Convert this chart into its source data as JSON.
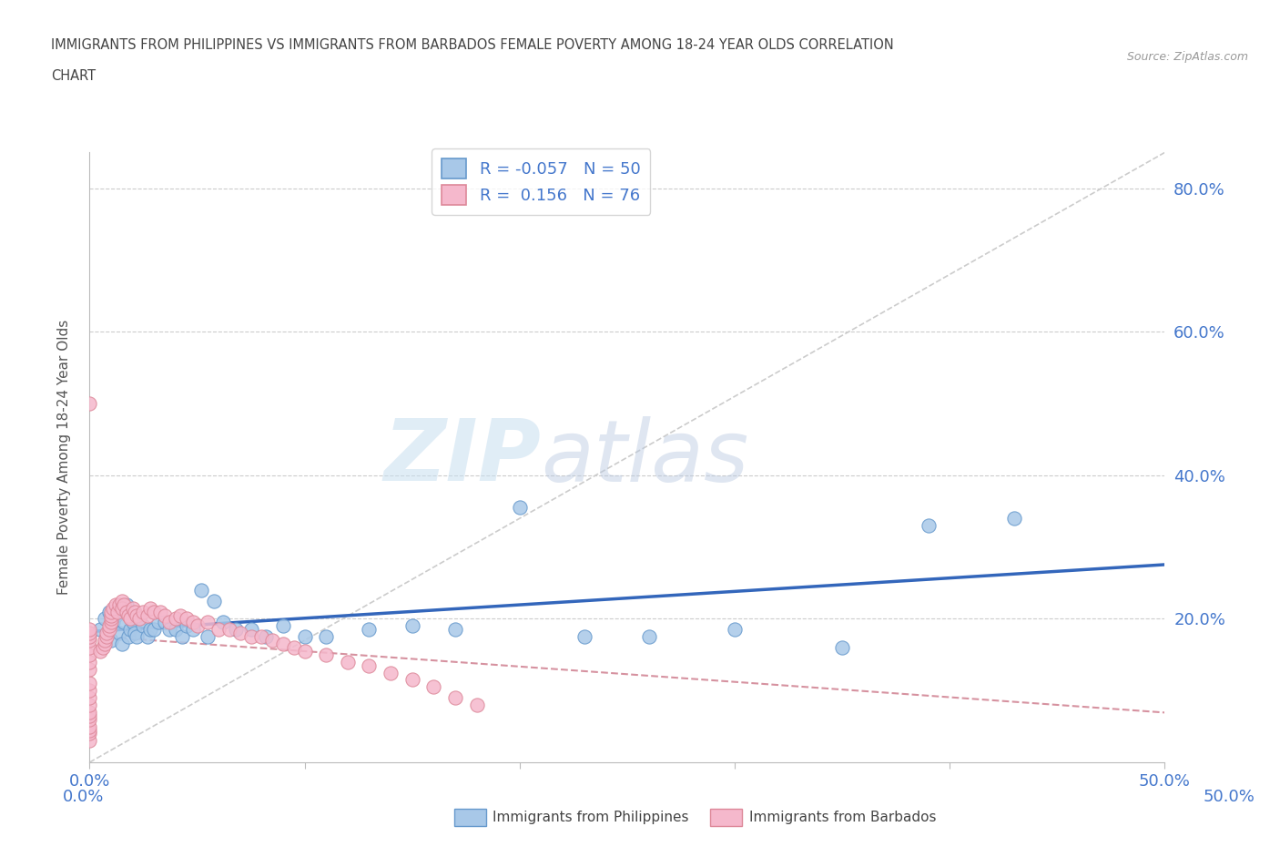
{
  "title_line1": "IMMIGRANTS FROM PHILIPPINES VS IMMIGRANTS FROM BARBADOS FEMALE POVERTY AMONG 18-24 YEAR OLDS CORRELATION",
  "title_line2": "CHART",
  "source": "Source: ZipAtlas.com",
  "ylabel": "Female Poverty Among 18-24 Year Olds",
  "xlim": [
    0.0,
    0.5
  ],
  "ylim": [
    0.0,
    0.85
  ],
  "philippines_color": "#a8c8e8",
  "barbados_color": "#f5b8cc",
  "philippines_edge": "#6699cc",
  "barbados_edge": "#dd8899",
  "trendline_philippines_color": "#3366bb",
  "trendline_barbados_color": "#cc7788",
  "watermark_zip": "ZIP",
  "watermark_atlas": "atlas",
  "legend_R_philippines": "-0.057",
  "legend_N_philippines": "50",
  "legend_R_barbados": "0.156",
  "legend_N_barbados": "76",
  "philippines_x": [
    0.005,
    0.007,
    0.008,
    0.009,
    0.01,
    0.01,
    0.011,
    0.012,
    0.013,
    0.014,
    0.015,
    0.016,
    0.017,
    0.018,
    0.019,
    0.02,
    0.021,
    0.022,
    0.023,
    0.025,
    0.027,
    0.028,
    0.03,
    0.032,
    0.035,
    0.037,
    0.04,
    0.043,
    0.045,
    0.048,
    0.052,
    0.055,
    0.058,
    0.062,
    0.068,
    0.075,
    0.082,
    0.09,
    0.1,
    0.11,
    0.13,
    0.15,
    0.17,
    0.2,
    0.23,
    0.26,
    0.3,
    0.35,
    0.39,
    0.43
  ],
  "philippines_y": [
    0.185,
    0.2,
    0.175,
    0.21,
    0.19,
    0.17,
    0.195,
    0.205,
    0.215,
    0.18,
    0.165,
    0.195,
    0.22,
    0.175,
    0.185,
    0.195,
    0.18,
    0.175,
    0.2,
    0.19,
    0.175,
    0.185,
    0.185,
    0.195,
    0.195,
    0.185,
    0.185,
    0.175,
    0.19,
    0.185,
    0.24,
    0.175,
    0.225,
    0.195,
    0.185,
    0.185,
    0.175,
    0.19,
    0.175,
    0.175,
    0.185,
    0.19,
    0.185,
    0.355,
    0.175,
    0.175,
    0.185,
    0.16,
    0.33,
    0.34
  ],
  "barbados_x": [
    0.0,
    0.0,
    0.0,
    0.0,
    0.0,
    0.0,
    0.0,
    0.0,
    0.0,
    0.0,
    0.0,
    0.0,
    0.0,
    0.0,
    0.0,
    0.0,
    0.0,
    0.0,
    0.0,
    0.0,
    0.005,
    0.006,
    0.007,
    0.007,
    0.008,
    0.008,
    0.009,
    0.009,
    0.01,
    0.01,
    0.01,
    0.01,
    0.011,
    0.012,
    0.013,
    0.014,
    0.015,
    0.015,
    0.016,
    0.017,
    0.018,
    0.019,
    0.02,
    0.021,
    0.022,
    0.023,
    0.025,
    0.027,
    0.028,
    0.03,
    0.033,
    0.035,
    0.037,
    0.04,
    0.042,
    0.045,
    0.048,
    0.05,
    0.055,
    0.06,
    0.065,
    0.07,
    0.075,
    0.08,
    0.085,
    0.09,
    0.095,
    0.1,
    0.11,
    0.12,
    0.13,
    0.14,
    0.15,
    0.16,
    0.17,
    0.18
  ],
  "barbados_y": [
    0.03,
    0.04,
    0.045,
    0.05,
    0.06,
    0.065,
    0.07,
    0.08,
    0.09,
    0.1,
    0.11,
    0.13,
    0.14,
    0.15,
    0.16,
    0.17,
    0.175,
    0.18,
    0.185,
    0.5,
    0.155,
    0.16,
    0.165,
    0.17,
    0.175,
    0.18,
    0.185,
    0.19,
    0.195,
    0.2,
    0.205,
    0.21,
    0.215,
    0.22,
    0.21,
    0.22,
    0.225,
    0.215,
    0.22,
    0.21,
    0.205,
    0.2,
    0.215,
    0.21,
    0.205,
    0.2,
    0.21,
    0.205,
    0.215,
    0.21,
    0.21,
    0.205,
    0.195,
    0.2,
    0.205,
    0.2,
    0.195,
    0.19,
    0.195,
    0.185,
    0.185,
    0.18,
    0.175,
    0.175,
    0.17,
    0.165,
    0.16,
    0.155,
    0.15,
    0.14,
    0.135,
    0.125,
    0.115,
    0.105,
    0.09,
    0.08
  ]
}
